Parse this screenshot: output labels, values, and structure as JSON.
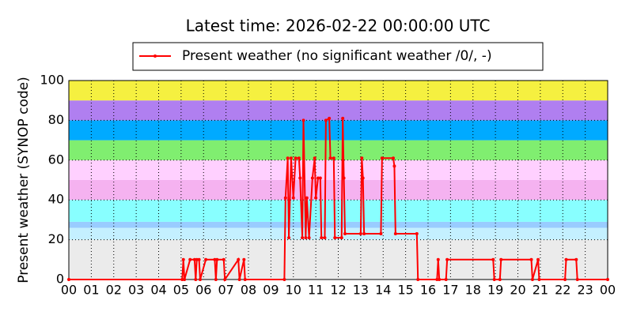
{
  "chart_data": {
    "type": "line",
    "title": "Latest time: 2026-02-22 00:00:00 UTC",
    "ylabel": "Present weather (SYNOP code)",
    "xlim": [
      0,
      24
    ],
    "ylim": [
      0,
      100
    ],
    "yticks": [
      0,
      20,
      40,
      60,
      80,
      100
    ],
    "xticks": [
      {
        "value": 0,
        "label": "00"
      },
      {
        "value": 1,
        "label": "01"
      },
      {
        "value": 2,
        "label": "02"
      },
      {
        "value": 3,
        "label": "03"
      },
      {
        "value": 4,
        "label": "04"
      },
      {
        "value": 5,
        "label": "05"
      },
      {
        "value": 6,
        "label": "06"
      },
      {
        "value": 7,
        "label": "07"
      },
      {
        "value": 8,
        "label": "08"
      },
      {
        "value": 9,
        "label": "09"
      },
      {
        "value": 10,
        "label": "10"
      },
      {
        "value": 11,
        "label": "11"
      },
      {
        "value": 12,
        "label": "12"
      },
      {
        "value": 13,
        "label": "13"
      },
      {
        "value": 14,
        "label": "14"
      },
      {
        "value": 15,
        "label": "15"
      },
      {
        "value": 16,
        "label": "16"
      },
      {
        "value": 17,
        "label": "17"
      },
      {
        "value": 18,
        "label": "18"
      },
      {
        "value": 19,
        "label": "19"
      },
      {
        "value": 20,
        "label": "20"
      },
      {
        "value": 21,
        "label": "21"
      },
      {
        "value": 22,
        "label": "22"
      },
      {
        "value": 23,
        "label": "23"
      },
      {
        "value": 24,
        "label": "00"
      }
    ],
    "grid": true,
    "legend": "top",
    "bands": [
      {
        "from": 0,
        "to": 20,
        "color": "#ebebeb"
      },
      {
        "from": 20,
        "to": 26,
        "color": "#c4f0ff"
      },
      {
        "from": 26,
        "to": 29,
        "color": "#99ccff"
      },
      {
        "from": 29,
        "to": 40,
        "color": "#88ffff"
      },
      {
        "from": 40,
        "to": 50,
        "color": "#f5b2f0"
      },
      {
        "from": 50,
        "to": 60,
        "color": "#ffd0ff"
      },
      {
        "from": 60,
        "to": 70,
        "color": "#80ee70"
      },
      {
        "from": 70,
        "to": 80,
        "color": "#00aaff"
      },
      {
        "from": 80,
        "to": 90,
        "color": "#b07ff0"
      },
      {
        "from": 90,
        "to": 100,
        "color": "#f5f040"
      }
    ],
    "series": [
      {
        "name": "Present weather (no significant weather /0/, -)",
        "color": "#ff0000",
        "x": [
          0,
          5.05,
          5.1,
          5.15,
          5.4,
          5.6,
          5.65,
          5.7,
          5.8,
          5.85,
          6.1,
          6.5,
          6.55,
          6.6,
          6.9,
          6.95,
          7.55,
          7.6,
          7.8,
          7.85,
          9.6,
          9.65,
          9.75,
          9.8,
          9.9,
          10.0,
          10.1,
          10.25,
          10.3,
          10.4,
          10.45,
          10.55,
          10.6,
          10.7,
          10.85,
          10.95,
          11.0,
          11.1,
          11.2,
          11.25,
          11.4,
          11.45,
          11.6,
          11.65,
          11.8,
          11.85,
          12.15,
          12.2,
          12.25,
          12.3,
          13.0,
          13.05,
          13.1,
          13.15,
          13.9,
          13.95,
          14.45,
          14.5,
          14.55,
          15.5,
          15.55,
          16.4,
          16.45,
          16.5,
          16.8,
          16.85,
          18.9,
          18.95,
          19.2,
          19.25,
          20.6,
          20.65,
          20.9,
          20.95,
          22.1,
          22.15,
          22.6,
          22.65,
          24
        ],
        "values": [
          0,
          0,
          10,
          0,
          10,
          10,
          0,
          10,
          10,
          0,
          10,
          10,
          0,
          10,
          10,
          0,
          10,
          0,
          10,
          0,
          0,
          41,
          61,
          21,
          61,
          41,
          61,
          61,
          51,
          21,
          80,
          21,
          41,
          21,
          51,
          61,
          41,
          51,
          51,
          21,
          21,
          80,
          81,
          61,
          61,
          21,
          21,
          81,
          51,
          23,
          23,
          61,
          51,
          23,
          23,
          61,
          61,
          57,
          23,
          23,
          0,
          0,
          10,
          0,
          0,
          10,
          10,
          0,
          0,
          10,
          10,
          0,
          10,
          0,
          0,
          10,
          10,
          0,
          0
        ]
      }
    ]
  }
}
